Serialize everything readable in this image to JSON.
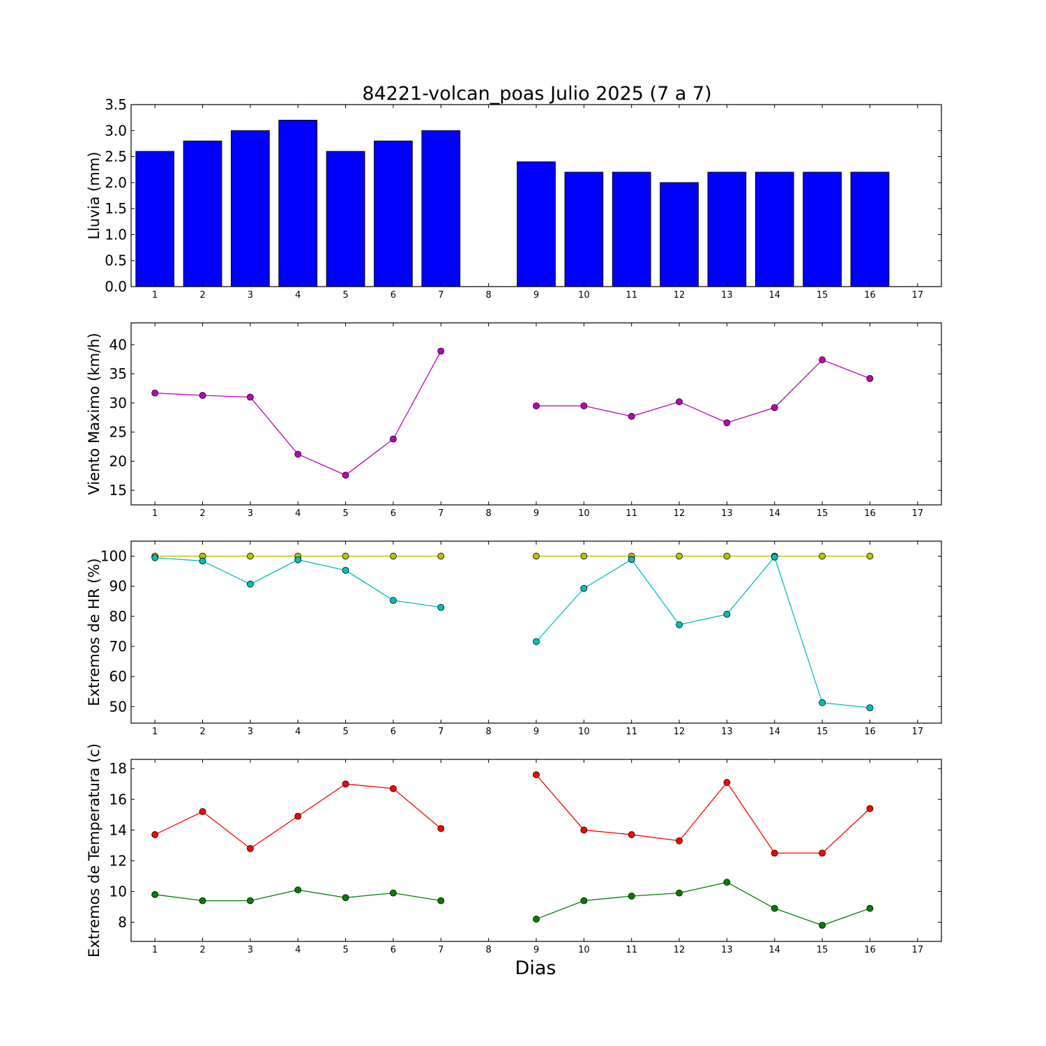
{
  "chart_data": [
    {
      "type": "bar",
      "title": "84221-volcan_poas Julio 2025  (7 a 7)",
      "xlabel": "",
      "ylabel": "Lluvia (mm)",
      "xlim": [
        0.5,
        17.5
      ],
      "ylim": [
        0.0,
        3.5
      ],
      "x_ticks": [
        "1",
        "2",
        "3",
        "4",
        "5",
        "6",
        "7",
        "8",
        "9",
        "10",
        "11",
        "12",
        "13",
        "14",
        "15",
        "16",
        "17"
      ],
      "y_ticks": [
        "0.0",
        "0.5",
        "1.0",
        "1.5",
        "2.0",
        "2.5",
        "3.0",
        "3.5"
      ],
      "series": [
        {
          "color": "#0000ff",
          "points": [
            [
              1,
              2.6
            ],
            [
              2,
              2.8
            ],
            [
              3,
              3.0
            ],
            [
              4,
              3.2
            ],
            [
              5,
              2.6
            ],
            [
              6,
              2.8
            ],
            [
              7,
              3.0
            ],
            [
              9,
              2.4
            ],
            [
              10,
              2.2
            ],
            [
              11,
              2.2
            ],
            [
              12,
              2.0
            ],
            [
              13,
              2.2
            ],
            [
              14,
              2.2
            ],
            [
              15,
              2.2
            ],
            [
              16,
              2.2
            ]
          ]
        }
      ]
    },
    {
      "type": "line",
      "xlabel": "",
      "ylabel": "Viento Maximo (km/h)",
      "xlim": [
        0.5,
        17.5
      ],
      "ylim": [
        12.5,
        43.75
      ],
      "x_ticks": [
        "1",
        "2",
        "3",
        "4",
        "5",
        "6",
        "7",
        "8",
        "9",
        "10",
        "11",
        "12",
        "13",
        "14",
        "15",
        "16",
        "17"
      ],
      "y_ticks": [
        "15",
        "20",
        "25",
        "30",
        "35",
        "40"
      ],
      "series": [
        {
          "color": "#bf00bf",
          "points": [
            [
              1,
              31.7
            ],
            [
              2,
              31.3
            ],
            [
              3,
              31.0
            ],
            [
              4,
              21.2
            ],
            [
              5,
              17.6
            ],
            [
              6,
              23.8
            ],
            [
              7,
              38.9
            ],
            [
              8,
              null
            ],
            [
              9,
              29.5
            ],
            [
              10,
              29.5
            ],
            [
              11,
              27.7
            ],
            [
              12,
              30.2
            ],
            [
              13,
              26.6
            ],
            [
              14,
              29.2
            ],
            [
              15,
              37.4
            ],
            [
              16,
              34.2
            ]
          ]
        }
      ]
    },
    {
      "type": "line",
      "xlabel": "",
      "ylabel": "Extremos de HR (%)",
      "xlim": [
        0.5,
        17.5
      ],
      "ylim": [
        44.5,
        105.0
      ],
      "x_ticks": [
        "1",
        "2",
        "3",
        "4",
        "5",
        "6",
        "7",
        "8",
        "9",
        "10",
        "11",
        "12",
        "13",
        "14",
        "15",
        "16",
        "17"
      ],
      "y_ticks": [
        "50",
        "60",
        "70",
        "80",
        "90",
        "100"
      ],
      "series": [
        {
          "color": "#bfbf00",
          "points": [
            [
              1,
              100
            ],
            [
              2,
              100
            ],
            [
              3,
              100
            ],
            [
              4,
              100
            ],
            [
              5,
              100
            ],
            [
              6,
              100
            ],
            [
              7,
              100
            ],
            [
              8,
              null
            ],
            [
              9,
              100
            ],
            [
              10,
              100
            ],
            [
              11,
              100
            ],
            [
              12,
              100
            ],
            [
              13,
              100
            ],
            [
              14,
              100
            ],
            [
              15,
              100
            ],
            [
              16,
              100
            ]
          ]
        },
        {
          "color": "#00bfbf",
          "points": [
            [
              1,
              99.5
            ],
            [
              2,
              98.4
            ],
            [
              3,
              90.7
            ],
            [
              4,
              98.8
            ],
            [
              5,
              95.3
            ],
            [
              6,
              85.3
            ],
            [
              7,
              83.0
            ],
            [
              8,
              null
            ],
            [
              9,
              71.6
            ],
            [
              10,
              89.3
            ],
            [
              11,
              98.9
            ],
            [
              12,
              77.2
            ],
            [
              13,
              80.7
            ],
            [
              14,
              99.7
            ],
            [
              15,
              51.3
            ],
            [
              16,
              49.6
            ]
          ]
        }
      ]
    },
    {
      "type": "line",
      "xlabel": "Dias",
      "ylabel": "Extremos de Temperatura (c)",
      "xlim": [
        0.5,
        17.5
      ],
      "ylim": [
        6.75,
        18.6
      ],
      "x_ticks": [
        "1",
        "2",
        "3",
        "4",
        "5",
        "6",
        "7",
        "8",
        "9",
        "10",
        "11",
        "12",
        "13",
        "14",
        "15",
        "16",
        "17"
      ],
      "y_ticks": [
        "8",
        "10",
        "12",
        "14",
        "16",
        "18"
      ],
      "series": [
        {
          "color": "#ff0000",
          "points": [
            [
              1,
              13.7
            ],
            [
              2,
              15.2
            ],
            [
              3,
              12.8
            ],
            [
              4,
              14.9
            ],
            [
              5,
              17.0
            ],
            [
              6,
              16.7
            ],
            [
              7,
              14.1
            ],
            [
              8,
              null
            ],
            [
              9,
              17.6
            ],
            [
              10,
              14.0
            ],
            [
              11,
              13.7
            ],
            [
              12,
              13.3
            ],
            [
              13,
              17.1
            ],
            [
              14,
              12.5
            ],
            [
              15,
              12.5
            ],
            [
              16,
              15.4
            ]
          ]
        },
        {
          "color": "#008000",
          "points": [
            [
              1,
              9.8
            ],
            [
              2,
              9.4
            ],
            [
              3,
              9.4
            ],
            [
              4,
              10.1
            ],
            [
              5,
              9.6
            ],
            [
              6,
              9.9
            ],
            [
              7,
              9.4
            ],
            [
              8,
              null
            ],
            [
              9,
              8.2
            ],
            [
              10,
              9.4
            ],
            [
              11,
              9.7
            ],
            [
              12,
              9.9
            ],
            [
              13,
              10.6
            ],
            [
              14,
              8.9
            ],
            [
              15,
              7.8
            ],
            [
              16,
              8.9
            ]
          ]
        }
      ]
    }
  ]
}
